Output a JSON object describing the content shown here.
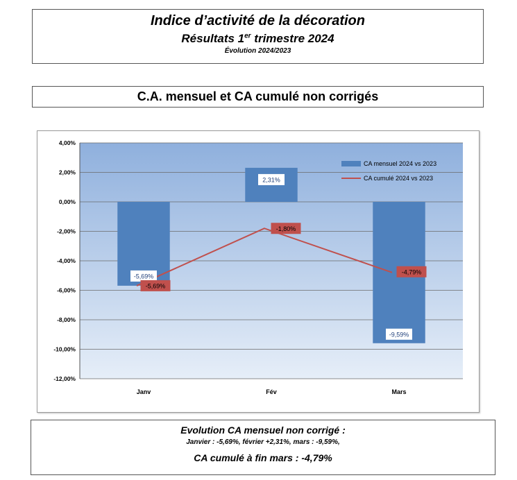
{
  "header": {
    "title": "Indice d’activité de la décoration",
    "subtitle_prefix": "Résultats 1",
    "subtitle_sup": "er",
    "subtitle_suffix": " trimestre 2024",
    "evolution": "Évolution 2024/2023"
  },
  "section_title": "C.A. mensuel et CA cumulé non corrigés",
  "chart_data": {
    "type": "bar",
    "title": "",
    "xlabel": "",
    "ylabel": "",
    "ylim": [
      -12,
      4
    ],
    "ytick_step": 2,
    "ytick_labels": [
      "4,00%",
      "2,00%",
      "0,00%",
      "-2,00%",
      "-4,00%",
      "-6,00%",
      "-8,00%",
      "-10,00%",
      "-12,00%"
    ],
    "categories": [
      "Janv",
      "Fév",
      "Mars"
    ],
    "grid": true,
    "legend_position": "top-right",
    "series": [
      {
        "name": "CA mensuel 2024 vs 2023",
        "type": "bar",
        "color": "#4f81bd",
        "values": [
          -5.69,
          2.31,
          -9.59
        ],
        "labels": [
          "-5,69%",
          "2,31%",
          "-9,59%"
        ]
      },
      {
        "name": "CA cumulé 2024 vs 2023",
        "type": "line",
        "color": "#c0504d",
        "values": [
          -5.69,
          -1.8,
          -4.79
        ],
        "labels": [
          "-5,69%",
          "-1,80%",
          "-4,79%"
        ]
      }
    ],
    "plot_background": [
      "#8fb0dd",
      "#e6eef8"
    ]
  },
  "footer": {
    "line1": "Evolution CA mensuel non corrigé :",
    "line2": "Janvier : -5,69%, février +2,31%, mars : -9,59%,",
    "line3": "CA cumulé à fin mars : -4,79%"
  }
}
